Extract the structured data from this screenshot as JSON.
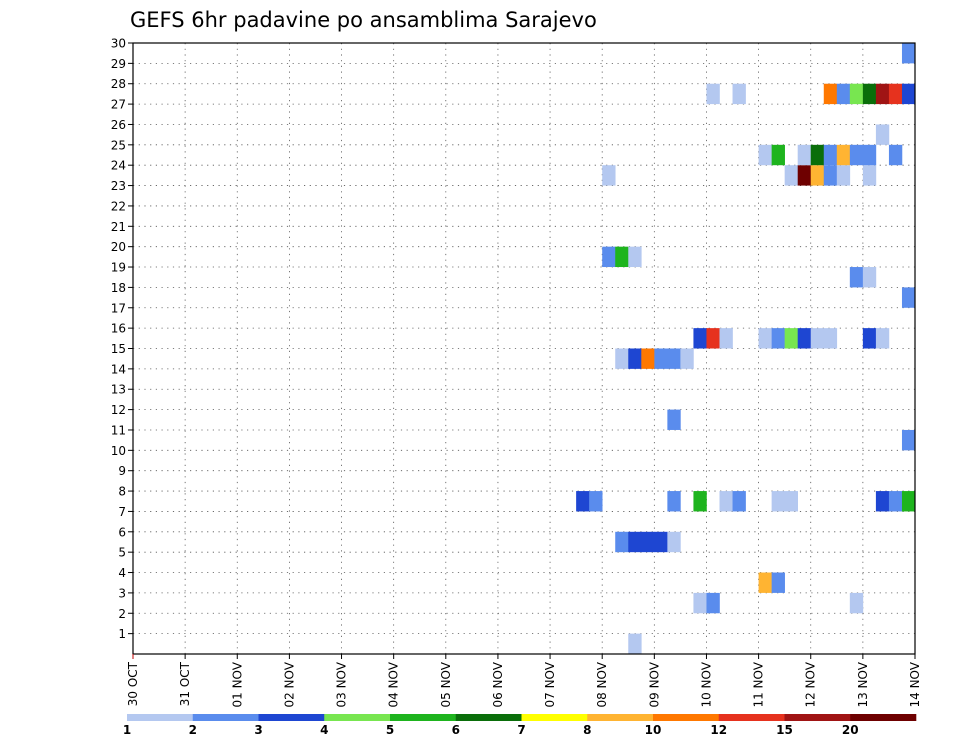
{
  "chart_data": {
    "type": "heatmap",
    "title": "GEFS 6hr padavine po ansamblima Sarajevo",
    "xlabel": "",
    "ylabel": "",
    "x_tick_labels": [
      "30 OCT",
      "31 OCT",
      "01 NOV",
      "02 NOV",
      "03 NOV",
      "04 NOV",
      "05 NOV",
      "06 NOV",
      "07 NOV",
      "08 NOV",
      "09 NOV",
      "10 NOV",
      "11 NOV",
      "12 NOV",
      "13 NOV",
      "14 NOV"
    ],
    "y_tick_labels": [
      1,
      2,
      3,
      4,
      5,
      6,
      7,
      8,
      9,
      10,
      11,
      12,
      13,
      14,
      15,
      16,
      17,
      18,
      19,
      20,
      21,
      22,
      23,
      24,
      25,
      26,
      27,
      28,
      29,
      30
    ],
    "xlim_days": [
      0,
      15
    ],
    "ylim_members": [
      0,
      30
    ],
    "grid": true,
    "legend": {
      "placement": "bottom",
      "colors": [
        "#b4c8f0",
        "#5a8ced",
        "#1e46d2",
        "#78e650",
        "#1eb41e",
        "#0a6e0a",
        "#ffff00",
        "#ffb432",
        "#ff7800",
        "#e6321e",
        "#a01414",
        "#6e0000"
      ],
      "labels": [
        "1",
        "2",
        "3",
        "4",
        "5",
        "6",
        "7",
        "8",
        "10",
        "12",
        "15",
        "20"
      ]
    },
    "series_note_units": "x = day offset from 30 OCT (6h steps), y = ensemble member, c = color class index",
    "cells": [
      {
        "x": 9.5,
        "y": 0,
        "c": 0
      },
      {
        "x": 10.75,
        "y": 2,
        "c": 0
      },
      {
        "x": 11.0,
        "y": 2,
        "c": 1
      },
      {
        "x": 13.75,
        "y": 2,
        "c": 0
      },
      {
        "x": 12.0,
        "y": 3,
        "c": 7
      },
      {
        "x": 12.25,
        "y": 3,
        "c": 1
      },
      {
        "x": 9.25,
        "y": 5,
        "c": 1
      },
      {
        "x": 9.5,
        "y": 5,
        "c": 2
      },
      {
        "x": 9.75,
        "y": 5,
        "c": 2
      },
      {
        "x": 10.0,
        "y": 5,
        "c": 2
      },
      {
        "x": 10.25,
        "y": 5,
        "c": 0
      },
      {
        "x": 8.5,
        "y": 7,
        "c": 2
      },
      {
        "x": 8.75,
        "y": 7,
        "c": 1
      },
      {
        "x": 10.25,
        "y": 7,
        "c": 1
      },
      {
        "x": 10.75,
        "y": 7,
        "c": 4
      },
      {
        "x": 11.25,
        "y": 7,
        "c": 0
      },
      {
        "x": 11.5,
        "y": 7,
        "c": 1
      },
      {
        "x": 12.25,
        "y": 7,
        "c": 0
      },
      {
        "x": 12.5,
        "y": 7,
        "c": 0
      },
      {
        "x": 14.25,
        "y": 7,
        "c": 2
      },
      {
        "x": 14.5,
        "y": 7,
        "c": 1
      },
      {
        "x": 14.75,
        "y": 7,
        "c": 4
      },
      {
        "x": 14.75,
        "y": 10,
        "c": 1
      },
      {
        "x": 10.25,
        "y": 11,
        "c": 1
      },
      {
        "x": 9.25,
        "y": 14,
        "c": 0
      },
      {
        "x": 9.5,
        "y": 14,
        "c": 2
      },
      {
        "x": 9.75,
        "y": 14,
        "c": 8
      },
      {
        "x": 10.0,
        "y": 14,
        "c": 1
      },
      {
        "x": 10.25,
        "y": 14,
        "c": 1
      },
      {
        "x": 10.5,
        "y": 14,
        "c": 0
      },
      {
        "x": 10.75,
        "y": 15,
        "c": 2
      },
      {
        "x": 11.0,
        "y": 15,
        "c": 9
      },
      {
        "x": 11.25,
        "y": 15,
        "c": 0
      },
      {
        "x": 12.0,
        "y": 15,
        "c": 0
      },
      {
        "x": 12.25,
        "y": 15,
        "c": 1
      },
      {
        "x": 12.5,
        "y": 15,
        "c": 3
      },
      {
        "x": 12.75,
        "y": 15,
        "c": 2
      },
      {
        "x": 13.0,
        "y": 15,
        "c": 0
      },
      {
        "x": 13.25,
        "y": 15,
        "c": 0
      },
      {
        "x": 14.0,
        "y": 15,
        "c": 2
      },
      {
        "x": 14.25,
        "y": 15,
        "c": 0
      },
      {
        "x": 14.75,
        "y": 17,
        "c": 1
      },
      {
        "x": 13.75,
        "y": 18,
        "c": 1
      },
      {
        "x": 14.0,
        "y": 18,
        "c": 0
      },
      {
        "x": 9.0,
        "y": 19,
        "c": 1
      },
      {
        "x": 9.25,
        "y": 19,
        "c": 4
      },
      {
        "x": 9.5,
        "y": 19,
        "c": 0
      },
      {
        "x": 9.0,
        "y": 23,
        "c": 0
      },
      {
        "x": 12.5,
        "y": 23,
        "c": 0
      },
      {
        "x": 12.75,
        "y": 23,
        "c": 11
      },
      {
        "x": 13.0,
        "y": 23,
        "c": 7
      },
      {
        "x": 13.25,
        "y": 23,
        "c": 1
      },
      {
        "x": 13.5,
        "y": 23,
        "c": 0
      },
      {
        "x": 14.0,
        "y": 23,
        "c": 0
      },
      {
        "x": 12.0,
        "y": 24,
        "c": 0
      },
      {
        "x": 12.25,
        "y": 24,
        "c": 4
      },
      {
        "x": 12.75,
        "y": 24,
        "c": 0
      },
      {
        "x": 13.0,
        "y": 24,
        "c": 5
      },
      {
        "x": 13.25,
        "y": 24,
        "c": 1
      },
      {
        "x": 13.5,
        "y": 24,
        "c": 7
      },
      {
        "x": 13.75,
        "y": 24,
        "c": 1
      },
      {
        "x": 14.0,
        "y": 24,
        "c": 1
      },
      {
        "x": 14.5,
        "y": 24,
        "c": 1
      },
      {
        "x": 14.25,
        "y": 25,
        "c": 0
      },
      {
        "x": 11.0,
        "y": 27,
        "c": 0
      },
      {
        "x": 11.5,
        "y": 27,
        "c": 0
      },
      {
        "x": 13.25,
        "y": 27,
        "c": 8
      },
      {
        "x": 13.5,
        "y": 27,
        "c": 1
      },
      {
        "x": 13.75,
        "y": 27,
        "c": 3
      },
      {
        "x": 14.0,
        "y": 27,
        "c": 5
      },
      {
        "x": 14.25,
        "y": 27,
        "c": 10
      },
      {
        "x": 14.5,
        "y": 27,
        "c": 9
      },
      {
        "x": 14.75,
        "y": 27,
        "c": 2
      },
      {
        "x": 14.75,
        "y": 29,
        "c": 1
      }
    ]
  }
}
